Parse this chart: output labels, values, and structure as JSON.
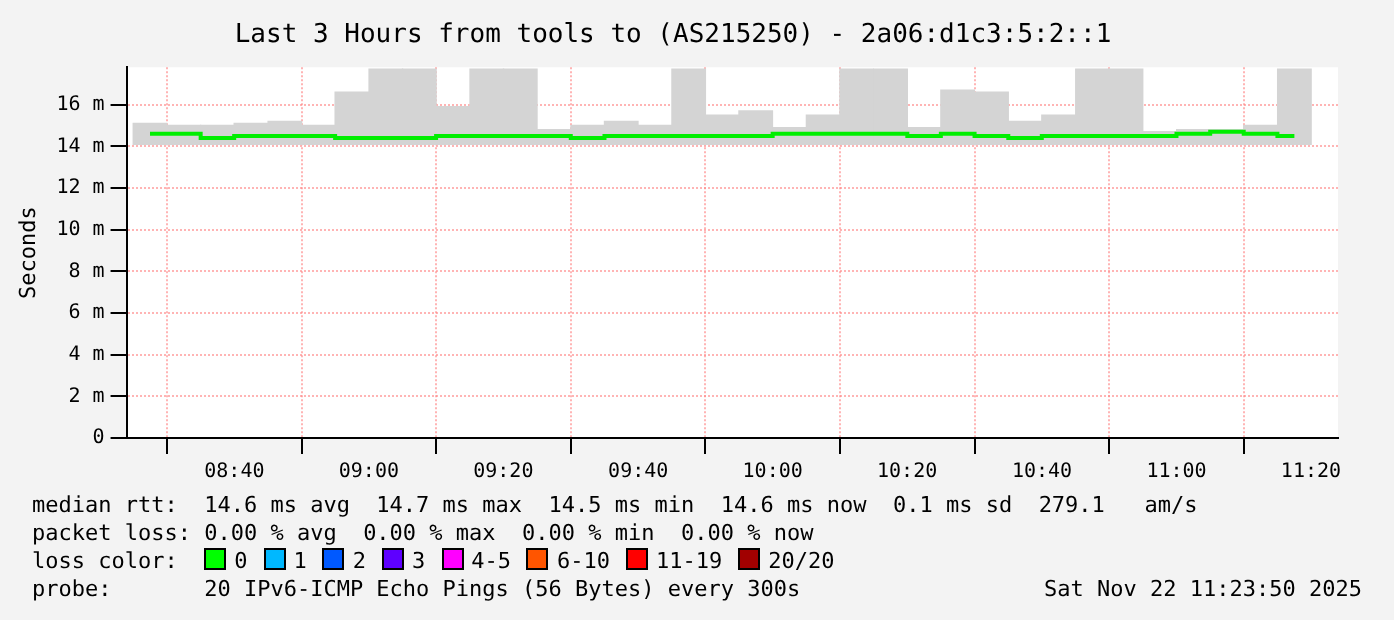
{
  "chart_data": {
    "type": "bar",
    "title": "Last 3 Hours from tools to (AS215250) - 2a06:d1c3:5:2::1",
    "ylabel": "Seconds",
    "x": [
      8.458,
      8.542,
      8.625,
      8.708,
      8.792,
      8.875,
      8.958,
      9.042,
      9.125,
      9.208,
      9.292,
      9.375,
      9.458,
      9.542,
      9.625,
      9.708,
      9.792,
      9.875,
      9.958,
      10.042,
      10.125,
      10.208,
      10.292,
      10.375,
      10.458,
      10.542,
      10.625,
      10.708,
      10.792,
      10.875,
      10.958,
      11.042,
      11.125,
      11.208,
      11.292
    ],
    "series": [
      {
        "color": "#d4d4d4",
        "base": [
          14.1,
          14.1,
          14.1,
          14.1,
          14.1,
          14.1,
          14.1,
          14.1,
          14.1,
          14.1,
          14.1,
          14.1,
          14.1,
          14.1,
          14.1,
          14.1,
          14.1,
          14.1,
          14.1,
          14.1,
          14.1,
          14.1,
          14.1,
          14.1,
          14.1,
          14.1,
          14.1,
          14.1,
          14.1,
          14.1,
          14.1,
          14.1,
          14.1,
          14.1,
          14.1
        ],
        "values": [
          1.0,
          0.9,
          0.9,
          1.0,
          1.1,
          0.9,
          2.5,
          3.6,
          3.6,
          1.8,
          3.6,
          3.6,
          0.7,
          0.9,
          1.1,
          0.9,
          3.6,
          1.4,
          1.6,
          0.8,
          1.4,
          3.6,
          3.6,
          0.8,
          2.6,
          2.5,
          1.1,
          1.4,
          3.6,
          3.6,
          0.6,
          0.7,
          0.7,
          0.9,
          3.6
        ]
      },
      {
        "type": "step",
        "color": "#00ee00",
        "values": [
          14.6,
          14.6,
          14.4,
          14.5,
          14.5,
          14.5,
          14.4,
          14.4,
          14.4,
          14.5,
          14.5,
          14.5,
          14.5,
          14.4,
          14.5,
          14.5,
          14.5,
          14.5,
          14.5,
          14.6,
          14.6,
          14.6,
          14.6,
          14.5,
          14.6,
          14.5,
          14.4,
          14.5,
          14.5,
          14.5,
          14.5,
          14.6,
          14.7,
          14.6,
          14.5
        ]
      }
    ],
    "xlim": [
      8.4,
      11.4
    ],
    "xticks": [
      {
        "value": 8.667,
        "label": "08:40"
      },
      {
        "value": 9,
        "label": "09:00"
      },
      {
        "value": 9.333,
        "label": "09:20"
      },
      {
        "value": 9.667,
        "label": "09:40"
      },
      {
        "value": 10,
        "label": "10:00"
      },
      {
        "value": 10.333,
        "label": "10:20"
      },
      {
        "value": 10.667,
        "label": "10:40"
      },
      {
        "value": 11,
        "label": "11:00"
      },
      {
        "value": 11.333,
        "label": "11:20"
      }
    ],
    "ylim": [
      0,
      17.8
    ],
    "yticks": [
      0,
      {
        "value": 2,
        "label": "2 m"
      },
      {
        "value": 4,
        "label": "4 m"
      },
      {
        "value": 6,
        "label": "6 m"
      },
      {
        "value": 8,
        "label": "8 m"
      },
      {
        "value": 10,
        "label": "10 m"
      },
      {
        "value": 12,
        "label": "12 m"
      },
      {
        "value": 14,
        "label": "14 m"
      },
      {
        "value": 16,
        "label": "16 m"
      }
    ],
    "grid": true,
    "legend": false,
    "annotations": [
      "median rtt:  14.6 ms avg  14.7 ms max  14.5 ms min  14.6 ms now  0.1 ms sd  279.1   am/s",
      "packet loss: 0.00 % avg  0.00 % max  0.00 % min  0.00 % now",
      "loss color:",
      "0",
      "1",
      "2",
      "3",
      "4-5",
      "6-10",
      "11-19",
      "20/20",
      "probe:       20 IPv6-ICMP Echo Pings (56 Bytes) every 300s",
      "Sat Nov 22 11:23:50 2025"
    ]
  }
}
